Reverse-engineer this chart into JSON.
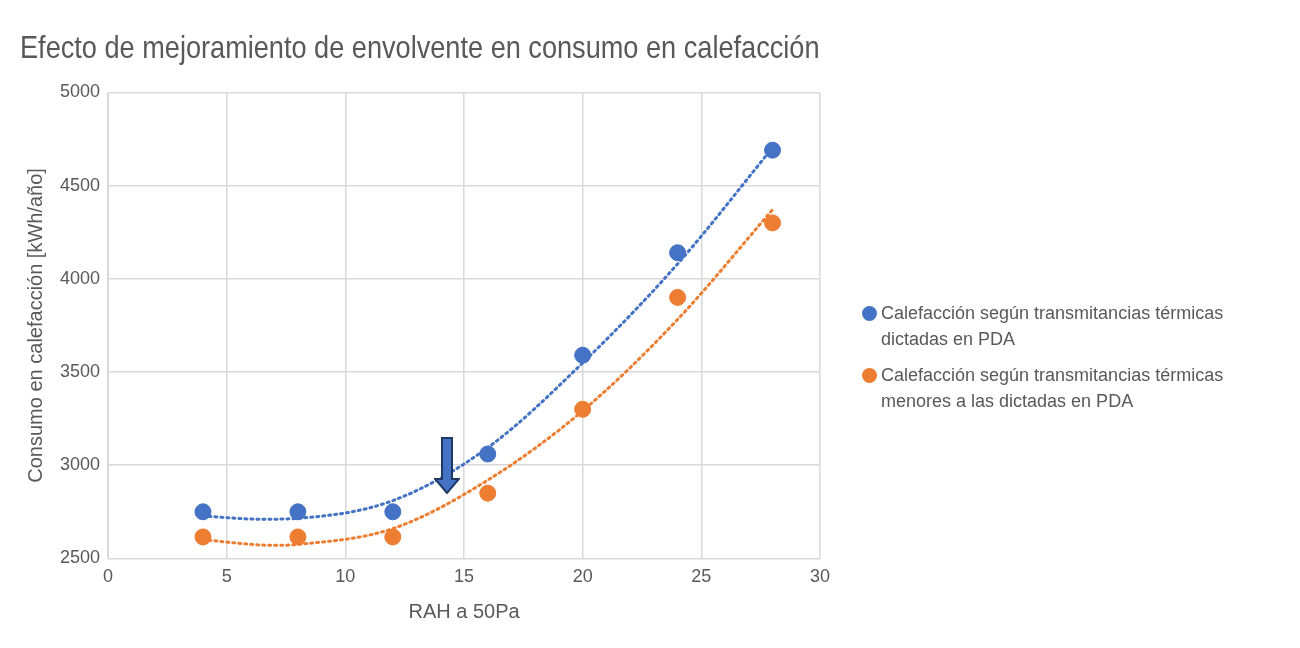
{
  "chart_data": {
    "type": "scatter",
    "title": "Efecto de mejoramiento de envolvente en consumo en calefacción",
    "xlabel": "RAH a 50Pa",
    "ylabel": "Consumo en calefacción [kWh/año]",
    "x": [
      4,
      8,
      12,
      16,
      20,
      24,
      28
    ],
    "series": [
      {
        "name": "Calefacción según transmitancias térmicas dictadas en PDA",
        "color": "#4472c4",
        "values": [
          2750,
          2750,
          2750,
          3060,
          3590,
          4140,
          4690
        ]
      },
      {
        "name": "Calefacción según transmitancias térmicas menores a las dictadas en PDA",
        "color": "#ed7d31",
        "values": [
          2615,
          2615,
          2615,
          2850,
          3300,
          3900,
          4300
        ]
      },
      {
        "type": "line",
        "color": "#4472c4",
        "line_style": "dotted",
        "marker": "none",
        "x": [
          4,
          6.5,
          8,
          12,
          16,
          20,
          24,
          28
        ],
        "values": [
          2727,
          2710,
          2715,
          2810,
          3094,
          3549,
          4080,
          4703
        ]
      },
      {
        "type": "line",
        "color": "#ed7d31",
        "line_style": "dotted",
        "marker": "none",
        "x": [
          4,
          7,
          8,
          12,
          16,
          20,
          24,
          28
        ],
        "values": [
          2600,
          2570,
          2575,
          2660,
          2920,
          3292,
          3782,
          4371
        ]
      }
    ],
    "xlim": [
      0,
      30
    ],
    "xticks": [
      0,
      5,
      10,
      15,
      20,
      25,
      30
    ],
    "ylim": [
      2500,
      5000
    ],
    "yticks": [
      2500,
      3000,
      3500,
      4000,
      4500,
      5000
    ],
    "grid": true,
    "legend": "right",
    "marker": "circle"
  }
}
